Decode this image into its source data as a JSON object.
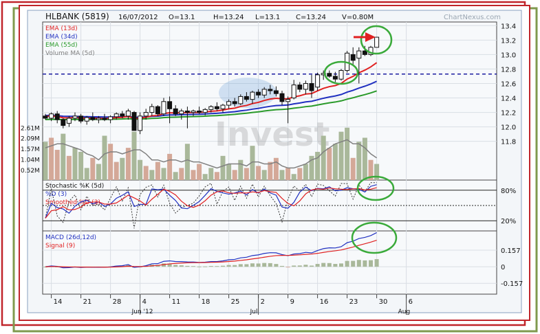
{
  "header": {
    "symbol": "HLBANK (5819)",
    "date": "16/07/2012",
    "open": "O=13.1",
    "high": "H=13.24",
    "low": "L=13.1",
    "close": "C=13.24",
    "volume": "V=0.80M",
    "source": "ChartNexus.com"
  },
  "colors": {
    "frame_red": "#c0242a",
    "frame_green": "#7f9a4e",
    "ema13": "#e02020",
    "ema34": "#2030c0",
    "ema55": "#2a9a2a",
    "volume_ma": "#808080",
    "vol_up": "#a9b89a",
    "vol_down": "#d4a898",
    "annotation_green": "#3aaa3a",
    "annotation_arrow": "#e02020",
    "resistance_line": "#1a1aa0"
  },
  "icons": [
    "arrow-right-icon"
  ],
  "chart_data": [
    {
      "type": "candlestick",
      "panel": "price",
      "legend": [
        "EMA (13d)",
        "EMA (34d)",
        "EMA (55d)",
        "Volume MA (5d)"
      ],
      "y_ticks": [
        "13.4",
        "13.2",
        "13.0",
        "12.8",
        "12.6",
        "12.4",
        "12.2",
        "12.0",
        "11.8"
      ],
      "ylim": [
        11.55,
        13.45
      ],
      "resistance_level": 12.73,
      "x_ticks": [
        "14",
        "21",
        "28",
        "4",
        "11",
        "18",
        "25",
        "2",
        "9",
        "16",
        "23",
        "30",
        "6"
      ],
      "month_labels": [
        "Jun '12",
        "Jul",
        "Aug"
      ],
      "x_tick_index": [
        1,
        6,
        11,
        16,
        21,
        26,
        31,
        36,
        41,
        46,
        51,
        56,
        61
      ],
      "candles": [
        [
          12.15,
          12.18,
          12.1,
          12.12
        ],
        [
          12.12,
          12.2,
          12.08,
          12.18
        ],
        [
          12.18,
          12.22,
          12.05,
          12.1
        ],
        [
          12.1,
          12.12,
          11.98,
          12.02
        ],
        [
          12.05,
          12.15,
          12.0,
          12.12
        ],
        [
          12.12,
          12.2,
          12.08,
          12.15
        ],
        [
          12.15,
          12.18,
          12.05,
          12.08
        ],
        [
          12.08,
          12.15,
          12.03,
          12.13
        ],
        [
          12.13,
          12.2,
          12.08,
          12.1
        ],
        [
          12.1,
          12.15,
          12.05,
          12.12
        ],
        [
          12.12,
          12.18,
          12.08,
          12.1
        ],
        [
          12.1,
          12.16,
          12.05,
          12.14
        ],
        [
          12.14,
          12.2,
          12.1,
          12.18
        ],
        [
          12.18,
          12.22,
          12.12,
          12.15
        ],
        [
          12.15,
          12.25,
          12.1,
          12.22
        ],
        [
          12.2,
          12.22,
          11.95,
          11.95
        ],
        [
          11.95,
          12.2,
          11.9,
          12.15
        ],
        [
          12.15,
          12.25,
          12.1,
          12.2
        ],
        [
          12.2,
          12.32,
          12.15,
          12.28
        ],
        [
          12.28,
          12.3,
          12.15,
          12.18
        ],
        [
          12.18,
          12.4,
          12.15,
          12.35
        ],
        [
          12.35,
          12.42,
          12.05,
          12.25
        ],
        [
          12.25,
          12.3,
          12.15,
          12.18
        ],
        [
          12.18,
          12.25,
          12.1,
          12.22
        ],
        [
          12.22,
          12.28,
          11.98,
          12.2
        ],
        [
          12.2,
          12.24,
          12.15,
          12.22
        ],
        [
          12.22,
          12.28,
          12.18,
          12.2
        ],
        [
          12.2,
          12.26,
          12.16,
          12.24
        ],
        [
          12.24,
          12.3,
          12.2,
          12.28
        ],
        [
          12.28,
          12.34,
          12.22,
          12.25
        ],
        [
          12.25,
          12.32,
          12.2,
          12.3
        ],
        [
          12.3,
          12.38,
          12.25,
          12.35
        ],
        [
          12.35,
          12.4,
          12.28,
          12.32
        ],
        [
          12.32,
          12.45,
          12.3,
          12.42
        ],
        [
          12.42,
          12.48,
          12.35,
          12.38
        ],
        [
          12.38,
          12.5,
          12.32,
          12.48
        ],
        [
          12.48,
          12.52,
          12.4,
          12.44
        ],
        [
          12.44,
          12.55,
          12.4,
          12.52
        ],
        [
          12.52,
          12.58,
          12.45,
          12.5
        ],
        [
          12.5,
          12.56,
          12.42,
          12.46
        ],
        [
          12.46,
          12.5,
          12.3,
          12.35
        ],
        [
          12.35,
          12.42,
          12.05,
          12.38
        ],
        [
          12.4,
          12.65,
          12.38,
          12.58
        ],
        [
          12.58,
          12.62,
          12.48,
          12.52
        ],
        [
          12.52,
          12.64,
          12.45,
          12.6
        ],
        [
          12.6,
          12.72,
          12.4,
          12.5
        ],
        [
          12.55,
          12.75,
          12.5,
          12.72
        ],
        [
          12.72,
          12.78,
          12.65,
          12.74
        ],
        [
          12.74,
          12.78,
          12.68,
          12.7
        ],
        [
          12.7,
          12.76,
          12.62,
          12.66
        ],
        [
          12.66,
          12.8,
          12.64,
          12.78
        ],
        [
          12.78,
          13.05,
          12.75,
          13.02
        ],
        [
          13.0,
          13.1,
          12.85,
          12.92
        ],
        [
          12.95,
          13.1,
          12.6,
          13.05
        ],
        [
          13.05,
          13.12,
          12.98,
          13.0
        ],
        [
          13.0,
          13.12,
          12.98,
          13.1
        ],
        [
          13.1,
          13.24,
          13.1,
          13.24
        ]
      ]
    },
    {
      "type": "bar",
      "panel": "volume",
      "y_ticks": [
        "2.61M",
        "2.09M",
        "1.57M",
        "1.04M",
        "0.52M"
      ],
      "ylim": [
        0,
        2.9
      ],
      "values_m": [
        1.9,
        2.1,
        1.5,
        2.3,
        1.2,
        1.6,
        1.4,
        0.6,
        1.1,
        0.8,
        2.2,
        1.8,
        0.9,
        1.1,
        1.6,
        2.4,
        1.0,
        0.7,
        0.5,
        0.9,
        0.6,
        1.3,
        0.4,
        0.6,
        1.8,
        0.5,
        0.8,
        0.3,
        0.6,
        0.4,
        1.2,
        0.8,
        0.5,
        1.0,
        0.6,
        1.7,
        0.7,
        0.5,
        0.9,
        1.1,
        0.5,
        0.6,
        0.3,
        0.6,
        0.8,
        1.2,
        1.4,
        2.2,
        1.6,
        1.8,
        2.4,
        2.6,
        1.1,
        1.9,
        2.1,
        1.0,
        0.8
      ],
      "up": [
        1,
        0,
        0,
        1,
        0,
        1,
        1,
        1,
        0,
        1,
        1,
        0,
        0,
        1,
        0,
        1,
        1,
        0,
        1,
        0,
        1,
        0,
        1,
        0,
        1,
        0,
        0,
        1,
        1,
        0,
        1,
        1,
        0,
        1,
        0,
        1,
        0,
        1,
        0,
        0,
        1,
        0,
        1,
        0,
        1,
        1,
        1,
        1,
        0,
        1,
        1,
        1,
        0,
        1,
        1,
        0,
        1
      ],
      "volume_ma_m": [
        1.6,
        1.7,
        1.8,
        1.8,
        1.7,
        1.6,
        1.5,
        1.3,
        1.2,
        1.0,
        1.3,
        1.4,
        1.4,
        1.3,
        1.4,
        1.5,
        1.5,
        1.3,
        1.0,
        1.0,
        0.9,
        1.0,
        1.0,
        0.9,
        1.0,
        0.9,
        0.9,
        0.8,
        0.7,
        0.6,
        0.7,
        0.8,
        0.8,
        0.8,
        0.7,
        0.9,
        0.9,
        0.8,
        0.8,
        0.9,
        0.7,
        0.6,
        0.6,
        0.7,
        0.8,
        1.0,
        1.1,
        1.4,
        1.6,
        1.8,
        1.9,
        2.0,
        1.8,
        1.8,
        1.6,
        1.3,
        1.1
      ]
    },
    {
      "type": "line",
      "panel": "stochastic",
      "legend": [
        "Stochastic %K (5d)",
        "%D (3)",
        "Smoothed %D (3)"
      ],
      "y_ticks": [
        "80%",
        "20%"
      ],
      "ylim": [
        0,
        100
      ],
      "levels": [
        80,
        20
      ]
    },
    {
      "type": "bar",
      "panel": "macd",
      "legend": [
        "MACD (26d,12d)",
        "Signal (9)"
      ],
      "y_ticks": [
        "0.157",
        "0",
        "-0.157"
      ],
      "ylim": [
        -0.26,
        0.34
      ]
    }
  ]
}
